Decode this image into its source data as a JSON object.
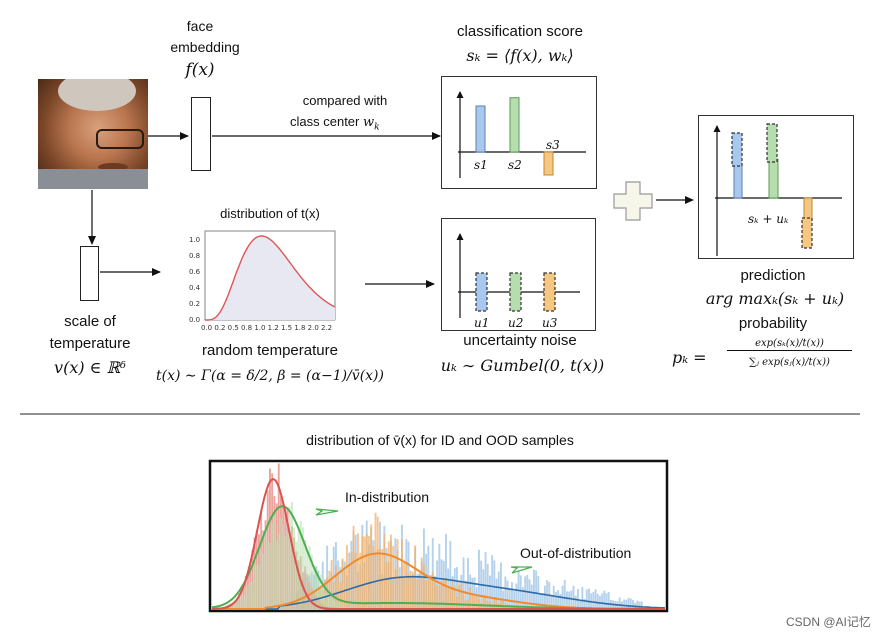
{
  "top": {
    "face_embedding": {
      "line1": "face",
      "line2": "embedding",
      "symbol": "f(x)"
    },
    "compared": {
      "line1": "compared with",
      "line2_prefix": "class center ",
      "line2_symbol": "w",
      "line2_sub": "k"
    },
    "classification": {
      "title": "classification score",
      "formula": "sₖ = ⟨f(x), wₖ⟩",
      "bars": [
        {
          "label": "s1",
          "value": 1.0
        },
        {
          "label": "s2",
          "value": 1.18
        },
        {
          "label": "s3",
          "value": -0.5
        }
      ]
    },
    "temperature": {
      "line1": "scale of",
      "line2": "temperature",
      "formula": "v(x) ∈ ℝᵟ"
    },
    "distribution": {
      "title": "distribution of t(x)",
      "subtitle": "random temperature",
      "formula": "t(x) ∼ Γ(α = δ/2, β = (α−1)/v̄(x))",
      "x_ticks": [
        "0.0",
        "0.2",
        "0.5",
        "0.8",
        "1.0",
        "1.2",
        "1.5",
        "1.8",
        "2.0",
        "2.2"
      ],
      "y_ticks": [
        "1.0",
        "0.8",
        "0.6",
        "0.4",
        "0.2",
        "0.0"
      ]
    },
    "noise": {
      "title": "uncertainty noise",
      "formula": "uₖ ∼ Gumbel(0, t(x))",
      "labels": [
        "u1",
        "u2",
        "u3"
      ]
    },
    "prediction": {
      "title": "prediction",
      "formula": "arg maxₖ(sₖ + uₖ)",
      "prob_title": "probability",
      "prob_lhs": "pₖ =",
      "prob_num": "exp(sₖ(x)/t(x))",
      "prob_den": "∑ⱼ exp(sⱼ(x)/t(x))",
      "plot_label": "sₖ + uₖ"
    }
  },
  "bottom": {
    "title": "distribution of v̄(x) for ID and OOD samples",
    "id_label": "In-distribution",
    "ood_label": "Out-of-distribution"
  },
  "watermark": "CSDN @AI记忆",
  "colors": {
    "blue": "#a9c8ee",
    "green": "#b5ddae",
    "orange": "#f6c783",
    "red": "#d9534f",
    "curve_red": "#e05555",
    "curve_green": "#4caf50",
    "curve_orange": "#f08a2a",
    "curve_blue": "#2d6aa8"
  }
}
